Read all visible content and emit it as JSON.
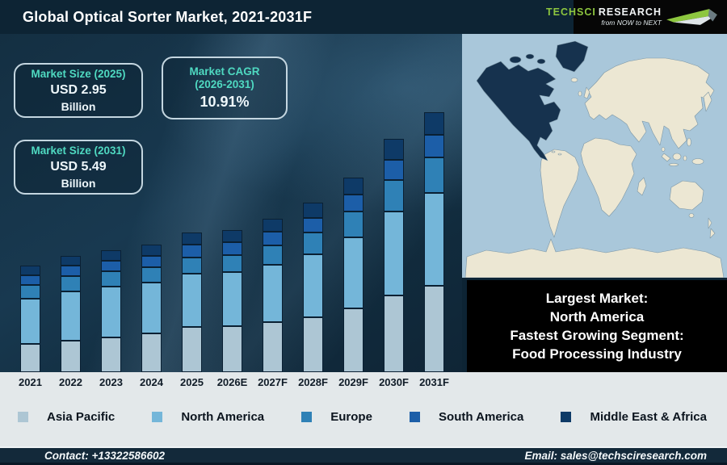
{
  "header": {
    "title": "Global Optical Sorter Market, 2021-2031F",
    "logo": {
      "brand_primary": "TechSci",
      "brand_secondary": "Research",
      "tagline": "from NOW to NEXT",
      "brand_color": "#8dc63f"
    }
  },
  "stats": [
    {
      "title": "Market Size (2025)",
      "value": "USD 2.95",
      "unit": "Billion"
    },
    {
      "title": "Market CAGR",
      "subtitle": "(2026-2031)",
      "value": "10.91%"
    },
    {
      "title": "Market Size (2031)",
      "value": "USD 5.49",
      "unit": "Billion"
    }
  ],
  "chart_data": {
    "type": "bar",
    "stacked": true,
    "title": "Global Optical Sorter Market, 2021-2031F",
    "unit": "USD Billion",
    "categories": [
      "2021",
      "2022",
      "2023",
      "2024",
      "2025",
      "2026E",
      "2027F",
      "2028F",
      "2029F",
      "2030F",
      "2031F"
    ],
    "series": [
      {
        "name": "Asia Pacific",
        "color": "#adc6d4",
        "values": [
          0.6,
          0.68,
          0.75,
          0.84,
          0.97,
          0.99,
          1.08,
          1.19,
          1.38,
          1.65,
          1.84
        ]
      },
      {
        "name": "North America",
        "color": "#74b6d9",
        "values": [
          1.01,
          1.08,
          1.11,
          1.12,
          1.17,
          1.17,
          1.25,
          1.35,
          1.53,
          1.8,
          1.99
        ]
      },
      {
        "name": "Europe",
        "color": "#2f81b6",
        "values": [
          0.27,
          0.3,
          0.31,
          0.31,
          0.32,
          0.35,
          0.39,
          0.45,
          0.53,
          0.65,
          0.74
        ]
      },
      {
        "name": "South America",
        "color": "#1c5ea8",
        "values": [
          0.19,
          0.2,
          0.21,
          0.22,
          0.25,
          0.25,
          0.27,
          0.29,
          0.34,
          0.41,
          0.46
        ]
      },
      {
        "name": "Middle East & Africa",
        "color": "#0e3a67",
        "values": [
          0.18,
          0.19,
          0.2,
          0.21,
          0.24,
          0.24,
          0.26,
          0.3,
          0.34,
          0.42,
          0.46
        ]
      }
    ],
    "totals": [
      2.25,
      2.45,
      2.58,
      2.7,
      2.95,
      3.0,
      3.25,
      3.58,
      4.12,
      4.93,
      5.49
    ],
    "xlabel": "",
    "ylabel": "",
    "y_axis_visible": false,
    "grid": false,
    "legend_position": "bottom"
  },
  "map": {
    "highlighted_region": "North America",
    "ocean_color": "#a9c7da",
    "land_color": "#ece7d3",
    "highlight_color": "#16324e",
    "border_color": "#7d97a6"
  },
  "callout": {
    "lines": [
      "Largest Market:",
      "North America",
      "Fastest Growing Segment:",
      "Food Processing Industry"
    ]
  },
  "footer": {
    "contact": "Contact: +13322586602",
    "email": "Email: sales@techsciresearch.com"
  }
}
